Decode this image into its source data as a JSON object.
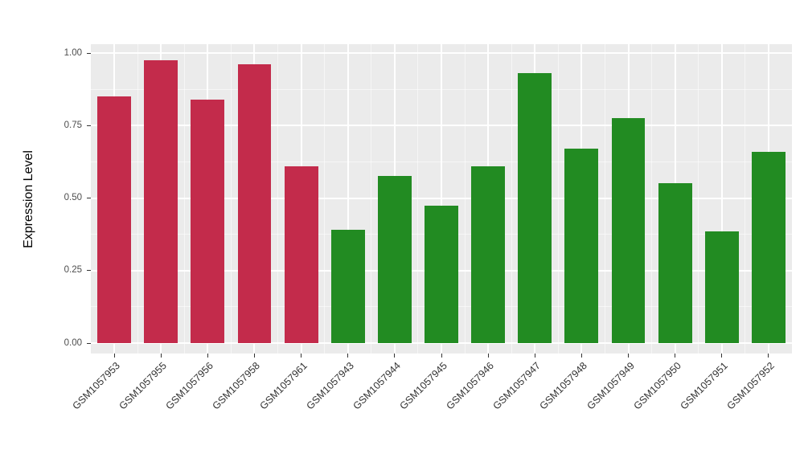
{
  "chart_data": {
    "type": "bar",
    "title": "",
    "xlabel": "",
    "ylabel": "Expression Level",
    "ylim": [
      0,
      1.0
    ],
    "y_ticks": [
      0,
      0.25,
      0.5,
      0.75,
      1.0
    ],
    "y_tick_labels": [
      "0.00",
      "0.25",
      "0.50",
      "0.75",
      "1.00"
    ],
    "grid": "major and minor, white on grey panel",
    "legend_position": "none",
    "panel_background": "#EBEBEB",
    "categories": [
      "GSM1057953",
      "GSM1057955",
      "GSM1057956",
      "GSM1057958",
      "GSM1057961",
      "GSM1057943",
      "GSM1057944",
      "GSM1057945",
      "GSM1057946",
      "GSM1057947",
      "GSM1057948",
      "GSM1057949",
      "GSM1057950",
      "GSM1057951",
      "GSM1057952"
    ],
    "values": [
      0.85,
      0.975,
      0.84,
      0.96,
      0.61,
      0.39,
      0.575,
      0.475,
      0.61,
      0.93,
      0.67,
      0.775,
      0.55,
      0.385,
      0.66
    ],
    "bar_colors": [
      "#C32B4B",
      "#C32B4B",
      "#C32B4B",
      "#C32B4B",
      "#C32B4B",
      "#228B22",
      "#228B22",
      "#228B22",
      "#228B22",
      "#228B22",
      "#228B22",
      "#228B22",
      "#228B22",
      "#228B22",
      "#228B22"
    ],
    "series_groups": [
      {
        "name": "red-group",
        "color": "#C32B4B",
        "categories": [
          "GSM1057953",
          "GSM1057955",
          "GSM1057956",
          "GSM1057958",
          "GSM1057961"
        ]
      },
      {
        "name": "green-group",
        "color": "#228B22",
        "categories": [
          "GSM1057943",
          "GSM1057944",
          "GSM1057945",
          "GSM1057946",
          "GSM1057947",
          "GSM1057948",
          "GSM1057949",
          "GSM1057950",
          "GSM1057951",
          "GSM1057952"
        ]
      }
    ]
  }
}
